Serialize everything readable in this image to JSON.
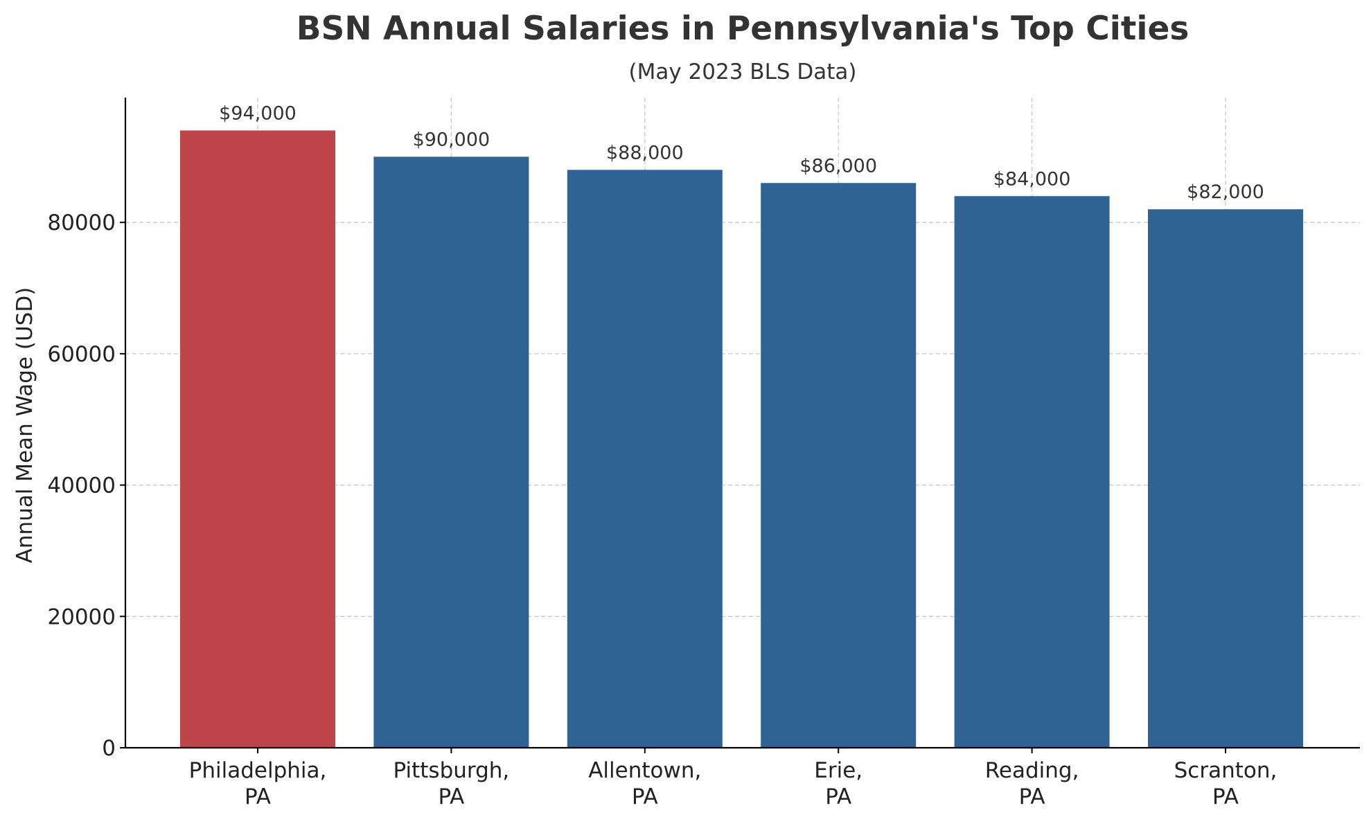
{
  "chart_data": {
    "type": "bar",
    "title": "BSN Annual Salaries in Pennsylvania's Top Cities",
    "subtitle": "(May 2023 BLS Data)",
    "xlabel": "",
    "ylabel": "Annual Mean Wage (USD)",
    "categories": [
      [
        "Philadelphia,",
        "PA"
      ],
      [
        "Pittsburgh,",
        "PA"
      ],
      [
        "Allentown,",
        "PA"
      ],
      [
        "Erie,",
        "PA"
      ],
      [
        "Reading,",
        "PA"
      ],
      [
        "Scranton,",
        "PA"
      ]
    ],
    "values": [
      94000,
      90000,
      88000,
      86000,
      84000,
      82000
    ],
    "value_labels": [
      "$94,000",
      "$90,000",
      "$88,000",
      "$86,000",
      "$84,000",
      "$82,000"
    ],
    "bar_colors": [
      "#c0454a",
      "#2e6393",
      "#2e6393",
      "#2e6393",
      "#2e6393",
      "#2e6393"
    ],
    "ylim": [
      0,
      99000
    ],
    "yticks": [
      0,
      20000,
      40000,
      60000,
      80000
    ],
    "ytick_labels": [
      "0",
      "20000",
      "40000",
      "60000",
      "80000"
    ],
    "grid": true,
    "grid_style": "dashed"
  }
}
